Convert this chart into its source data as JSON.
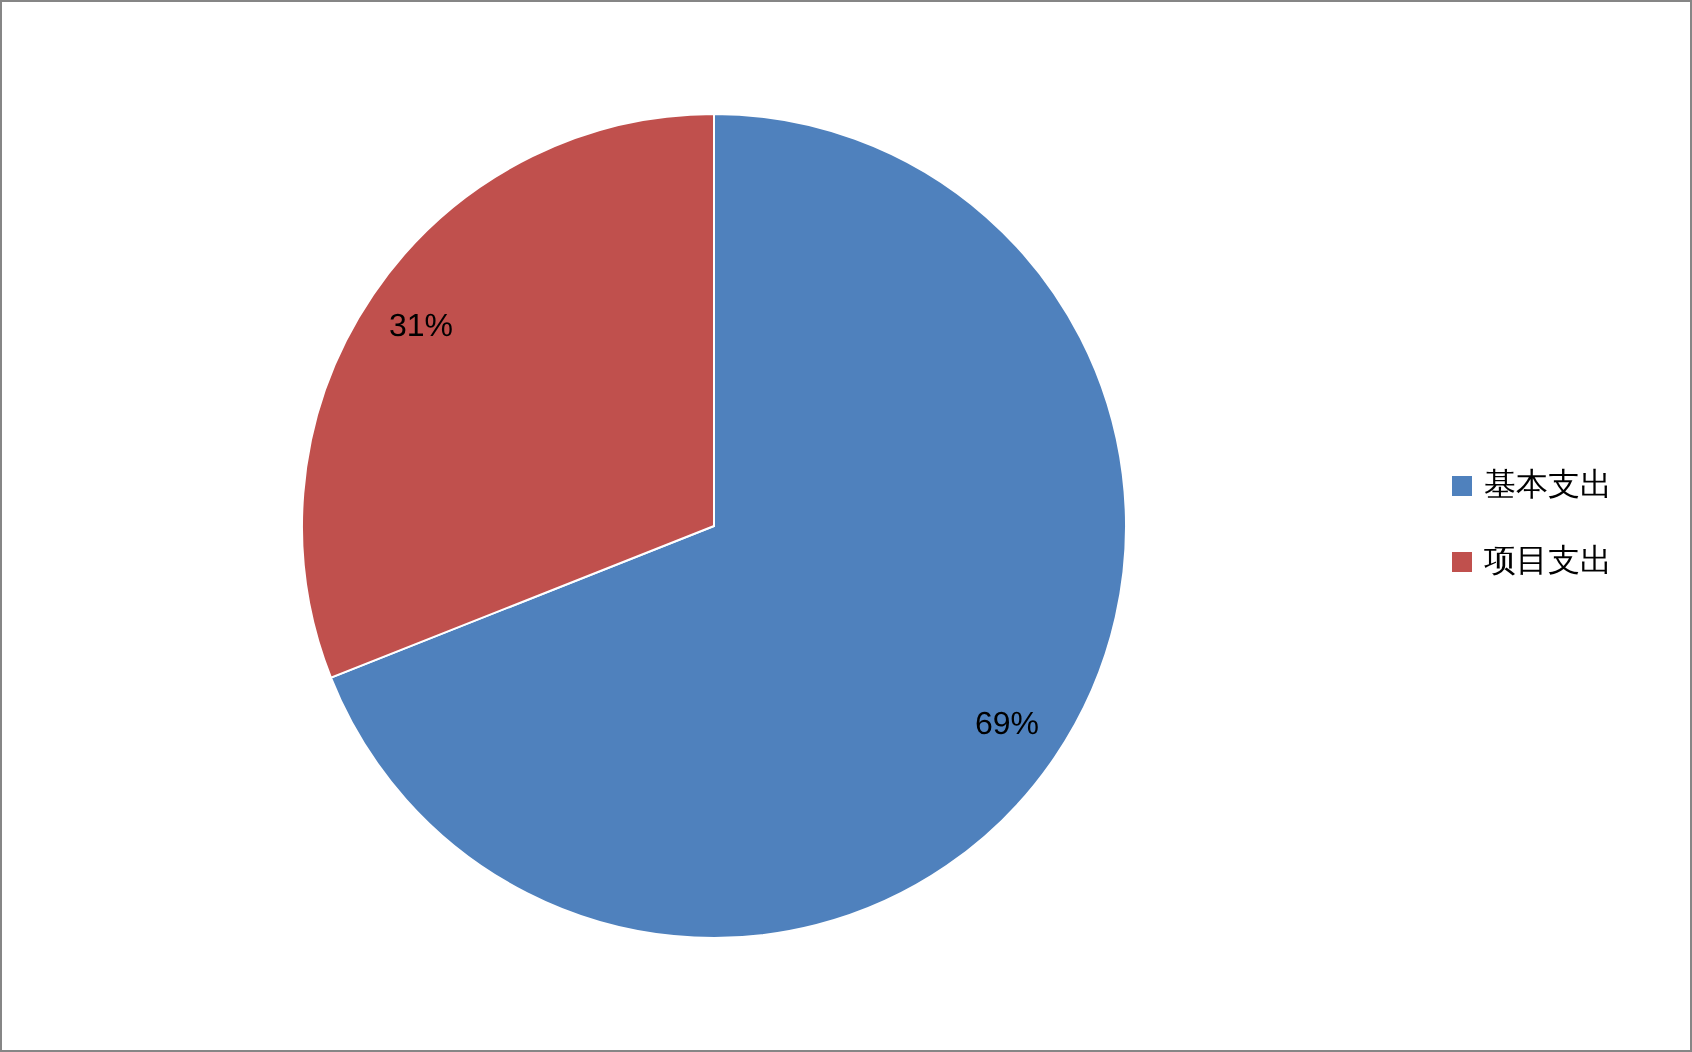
{
  "chart_data": {
    "type": "pie",
    "categories": [
      "基本支出",
      "项目支出"
    ],
    "values": [
      69,
      31
    ],
    "colors": [
      "#4f81bd",
      "#c0504d"
    ],
    "value_labels": [
      "69%",
      "31%"
    ],
    "legend": "right"
  }
}
